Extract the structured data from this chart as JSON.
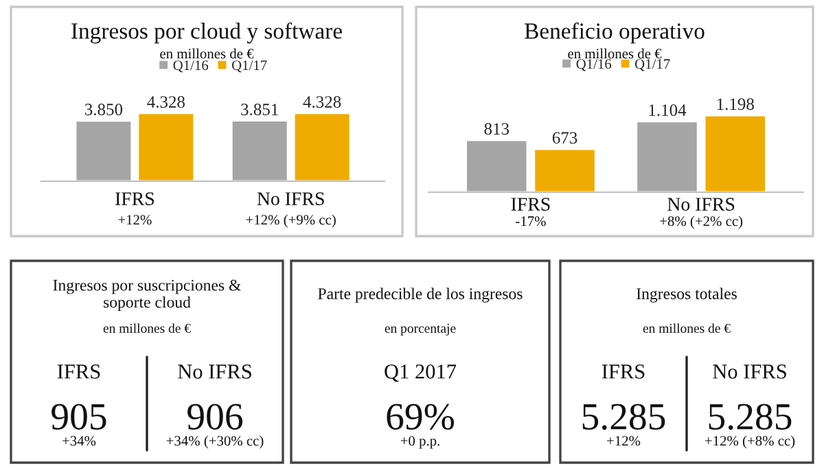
{
  "chart_data": [
    {
      "type": "bar",
      "title": "Ingresos por cloud y software",
      "subtitle": "en millones de €",
      "categories": [
        "IFRS",
        "No IFRS"
      ],
      "legend": "top",
      "series": [
        {
          "name": "Q1/16",
          "color": "#a5a5a5",
          "values": [
            3850,
            3851
          ],
          "value_labels": [
            "3.850",
            "3.851"
          ]
        },
        {
          "name": "Q1/17",
          "color": "#f0ab00",
          "values": [
            4328,
            4328
          ],
          "value_labels": [
            "4.328",
            "4.328"
          ]
        }
      ],
      "annotations": [
        "+12%",
        "+12% (+9% cc)"
      ]
    },
    {
      "type": "bar",
      "title": "Beneficio operativo",
      "subtitle": "en millones de €",
      "categories": [
        "IFRS",
        "No IFRS"
      ],
      "legend": "top",
      "series": [
        {
          "name": "Q1/16",
          "color": "#a5a5a5",
          "values": [
            813,
            1104
          ],
          "value_labels": [
            "813",
            "1.104"
          ]
        },
        {
          "name": "Q1/17",
          "color": "#f0ab00",
          "values": [
            673,
            1198
          ],
          "value_labels": [
            "673",
            "1.198"
          ]
        }
      ],
      "annotations": [
        "-17%",
        "+8% (+2% cc)"
      ]
    },
    {
      "type": "other",
      "title": "Ingresos por suscripciones & soporte cloud",
      "subtitle": "en millones de €",
      "categories": [
        "IFRS",
        "No IFRS"
      ],
      "value_labels": [
        "905",
        "906"
      ],
      "annotations": [
        "+34%",
        "+34% (+30% cc)"
      ]
    },
    {
      "type": "other",
      "title": "Parte predecible de los ingresos",
      "subtitle": "en porcentaje",
      "categories": [
        "Q1 2017"
      ],
      "value_labels": [
        "69%"
      ],
      "annotations": [
        "+0 p.p."
      ]
    },
    {
      "type": "other",
      "title": "Ingresos totales",
      "subtitle": "en millones de €",
      "categories": [
        "IFRS",
        "No IFRS"
      ],
      "value_labels": [
        "5.285",
        "5.285"
      ],
      "annotations": [
        "+12%",
        "+12% (+8% cc)"
      ]
    }
  ]
}
